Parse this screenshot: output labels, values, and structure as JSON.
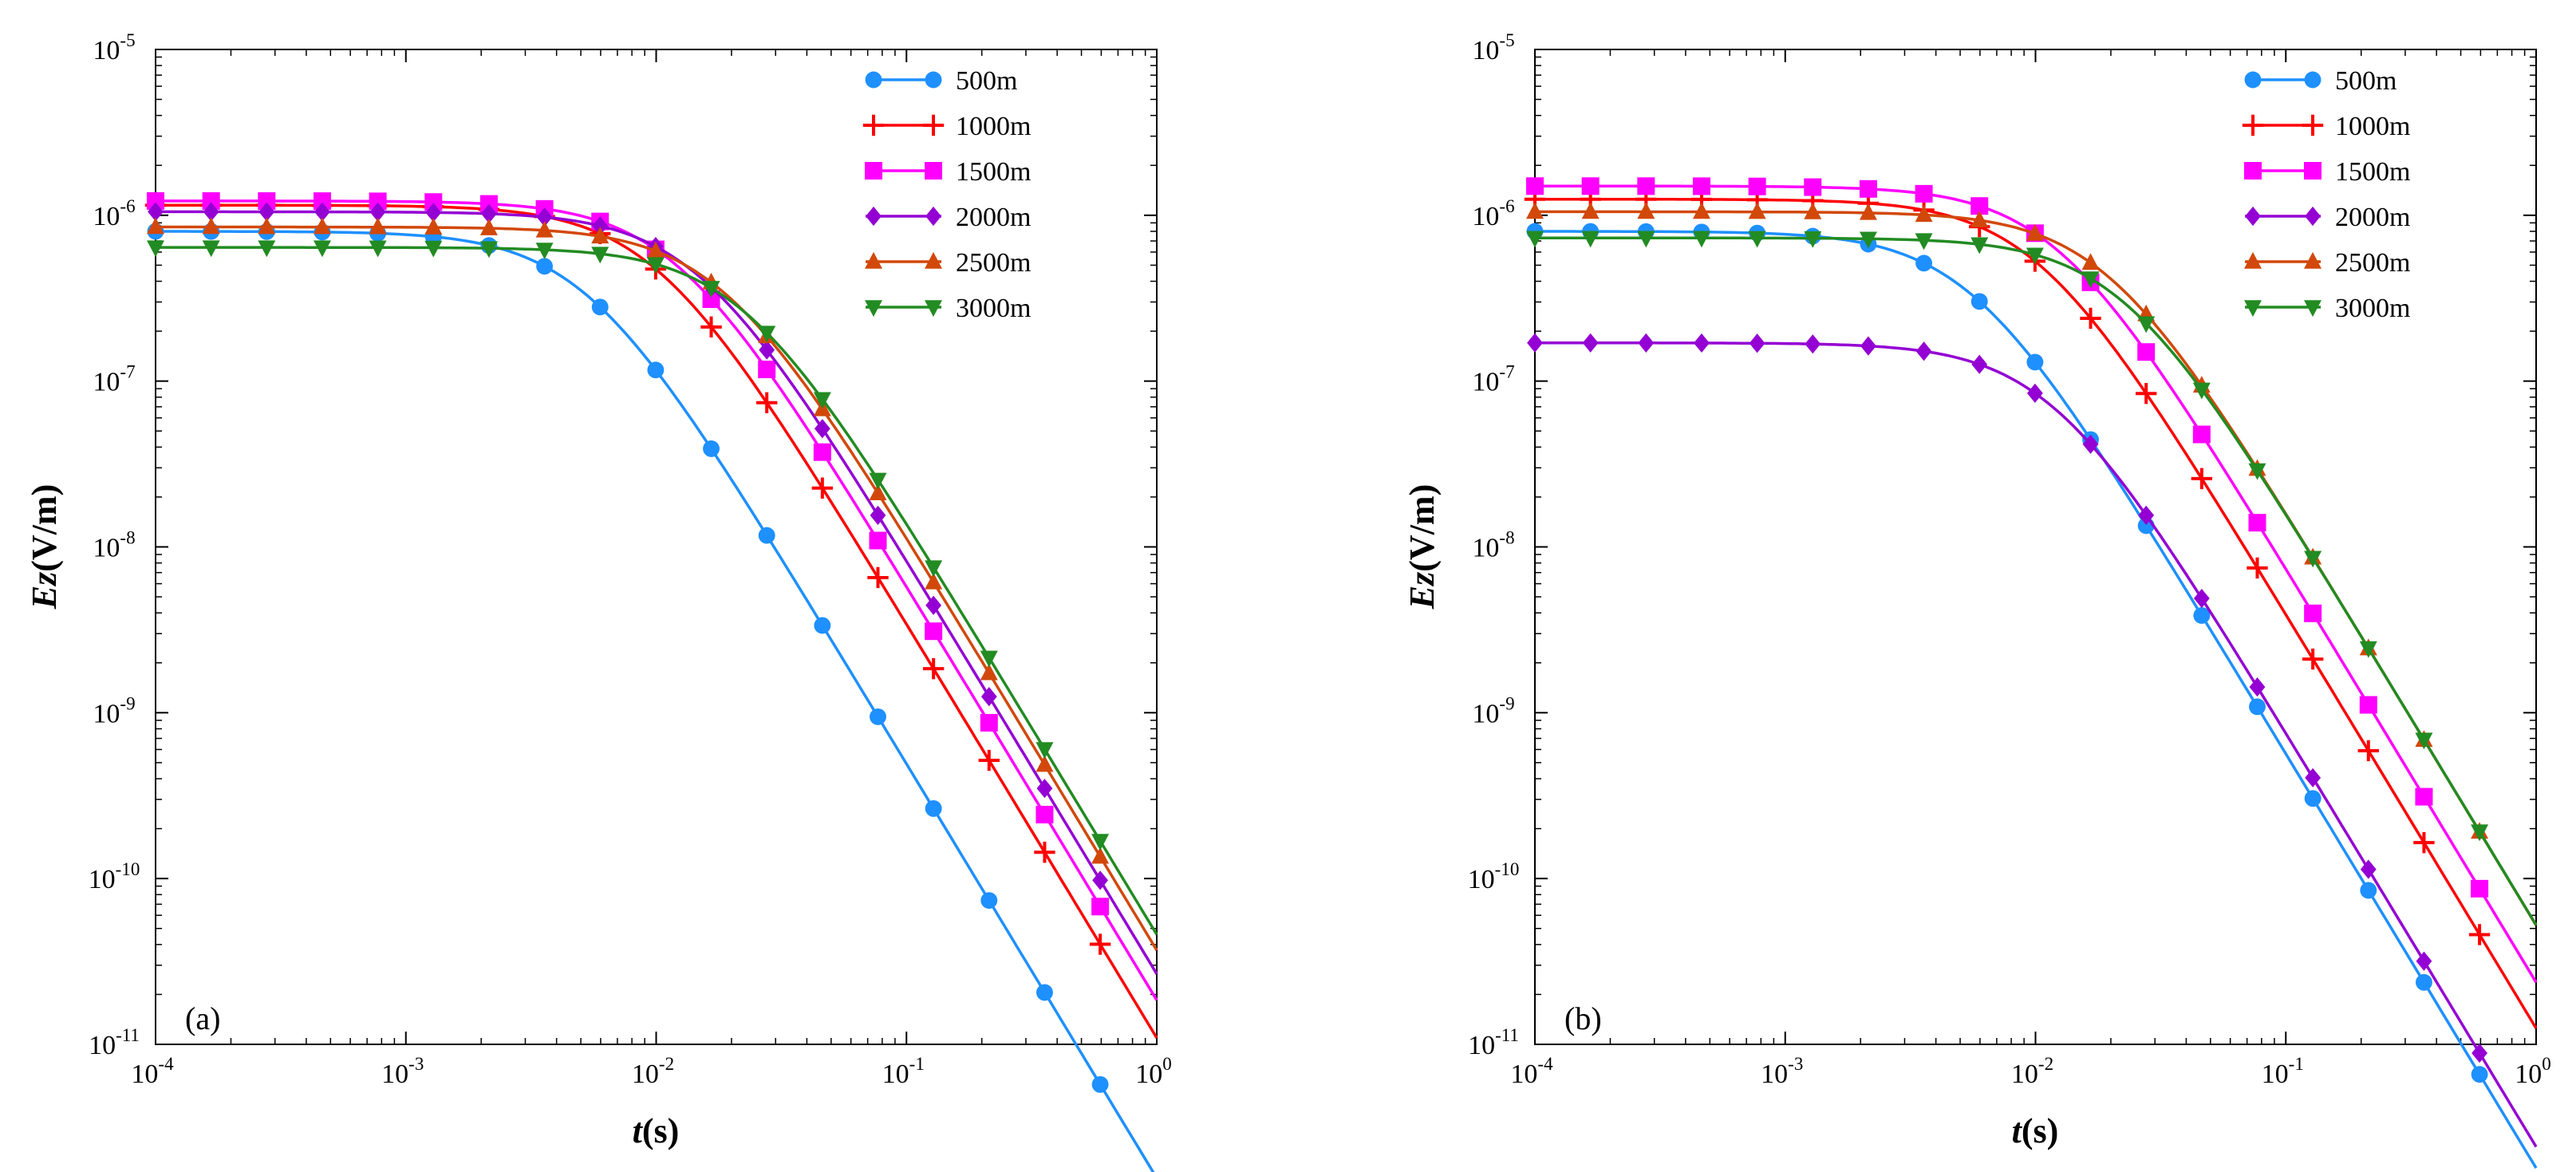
{
  "chart_data": [
    {
      "type": "line",
      "panel_label": "(a)",
      "xlabel_italic": "t",
      "xlabel_rest": "(s)",
      "ylabel_italic": "Ez",
      "ylabel_rest": "(V/m)",
      "xscale": "log",
      "yscale": "log",
      "xlim": [
        0.0001,
        1
      ],
      "ylim": [
        1e-11,
        1e-05
      ],
      "legend_position": "top-right",
      "x_ticks": [
        {
          "value": 0.0001,
          "base": "10",
          "exp": "-4"
        },
        {
          "value": 0.001,
          "base": "10",
          "exp": "-3"
        },
        {
          "value": 0.01,
          "base": "10",
          "exp": "-2"
        },
        {
          "value": 0.1,
          "base": "10",
          "exp": "-1"
        },
        {
          "value": 1,
          "base": "10",
          "exp": "0"
        }
      ],
      "y_ticks": [
        {
          "value": 1e-11,
          "base": "10",
          "exp": "-11"
        },
        {
          "value": 1e-10,
          "base": "10",
          "exp": "-10"
        },
        {
          "value": 1e-09,
          "base": "10",
          "exp": "-9"
        },
        {
          "value": 1e-08,
          "base": "10",
          "exp": "-8"
        },
        {
          "value": 1e-07,
          "base": "10",
          "exp": "-7"
        },
        {
          "value": 1e-06,
          "base": "10",
          "exp": "-6"
        },
        {
          "value": 1e-05,
          "base": "10",
          "exp": "-5"
        }
      ],
      "series": [
        {
          "name": "500m",
          "color": "#1e90ff",
          "marker": "circle",
          "plateau": 8e-07,
          "tc": 0.0052
        },
        {
          "name": "1000m",
          "color": "#ff0000",
          "marker": "plus",
          "plateau": 1.15e-06,
          "tc": 0.0098
        },
        {
          "name": "1500m",
          "color": "#ff00ff",
          "marker": "square",
          "plateau": 1.22e-06,
          "tc": 0.0118
        },
        {
          "name": "2000m",
          "color": "#9400d3",
          "marker": "diamond",
          "plateau": 1.05e-06,
          "tc": 0.0145
        },
        {
          "name": "2500m",
          "color": "#d2480a",
          "marker": "triangle-up",
          "plateau": 8.5e-07,
          "tc": 0.018
        },
        {
          "name": "3000m",
          "color": "#228b22",
          "marker": "triangle-down",
          "plateau": 6.4e-07,
          "tc": 0.022
        }
      ]
    },
    {
      "type": "line",
      "panel_label": "(b)",
      "xlabel_italic": "t",
      "xlabel_rest": "(s)",
      "ylabel_italic": "Ez",
      "ylabel_rest": "(V/m)",
      "xscale": "log",
      "yscale": "log",
      "xlim": [
        0.0001,
        1
      ],
      "ylim": [
        1e-11,
        1e-05
      ],
      "legend_position": "top-right",
      "x_ticks": [
        {
          "value": 0.0001,
          "base": "10",
          "exp": "-4"
        },
        {
          "value": 0.001,
          "base": "10",
          "exp": "-3"
        },
        {
          "value": 0.01,
          "base": "10",
          "exp": "-2"
        },
        {
          "value": 0.1,
          "base": "10",
          "exp": "-1"
        },
        {
          "value": 1,
          "base": "10",
          "exp": "0"
        }
      ],
      "y_ticks": [
        {
          "value": 1e-11,
          "base": "10",
          "exp": "-11"
        },
        {
          "value": 1e-10,
          "base": "10",
          "exp": "-10"
        },
        {
          "value": 1e-09,
          "base": "10",
          "exp": "-9"
        },
        {
          "value": 1e-08,
          "base": "10",
          "exp": "-8"
        },
        {
          "value": 1e-07,
          "base": "10",
          "exp": "-7"
        },
        {
          "value": 1e-06,
          "base": "10",
          "exp": "-6"
        },
        {
          "value": 1e-05,
          "base": "10",
          "exp": "-5"
        }
      ],
      "series": [
        {
          "name": "500m",
          "color": "#1e90ff",
          "marker": "circle",
          "plateau": 8e-07,
          "tc": 0.0055
        },
        {
          "name": "1000m",
          "color": "#ff0000",
          "marker": "plus",
          "plateau": 1.25e-06,
          "tc": 0.01
        },
        {
          "name": "1500m",
          "color": "#ff00ff",
          "marker": "square",
          "plateau": 1.5e-06,
          "tc": 0.012
        },
        {
          "name": "2000m",
          "color": "#9400d3",
          "marker": "diamond",
          "plateau": 1.7e-07,
          "tc": 0.0115
        },
        {
          "name": "2500m",
          "color": "#d2480a",
          "marker": "triangle-up",
          "plateau": 1.05e-06,
          "tc": 0.019
        },
        {
          "name": "3000m",
          "color": "#228b22",
          "marker": "triangle-down",
          "plateau": 7.3e-07,
          "tc": 0.022
        }
      ]
    }
  ]
}
